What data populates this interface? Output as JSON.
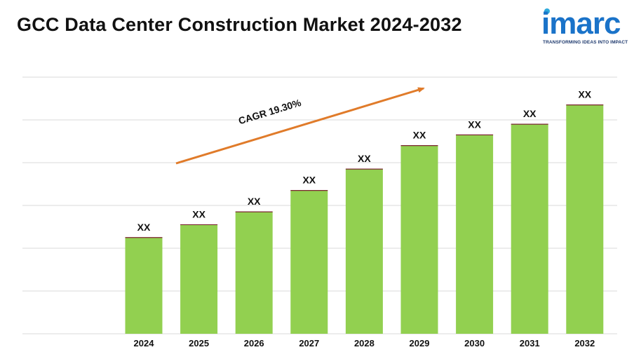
{
  "header": {
    "title": "GCC Data Center Construction Market 2024-2032"
  },
  "logo": {
    "name": "imarc",
    "tagline": "TRANSFORMING IDEAS INTO IMPACT",
    "color": "#1a73c9"
  },
  "chart_data": {
    "type": "bar",
    "title": "GCC Data Center Construction Market 2024-2032",
    "xlabel": "",
    "ylabel": "",
    "categories": [
      "2024",
      "2025",
      "2026",
      "2027",
      "2028",
      "2029",
      "2030",
      "2031",
      "2032"
    ],
    "values": [
      2.25,
      2.55,
      2.85,
      3.35,
      3.85,
      4.4,
      4.65,
      4.9,
      5.35
    ],
    "data_labels": [
      "XX",
      "XX",
      "XX",
      "XX",
      "XX",
      "XX",
      "XX",
      "XX",
      "XX"
    ],
    "ylim": [
      0,
      6
    ],
    "grid": true,
    "bar_color": "#92d050",
    "bar_top_color": "#7b2430",
    "annotation": {
      "text": "CAGR 19.30%",
      "arrow_color": "#e07b2a"
    }
  }
}
